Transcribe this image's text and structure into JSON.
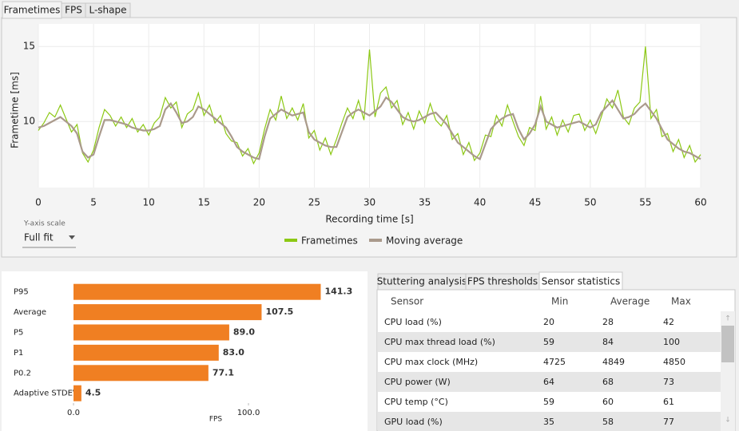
{
  "tabs": [
    "Frametimes",
    "FPS",
    "L-shape"
  ],
  "y_scale": {
    "label": "Y-axis scale",
    "value": "Full fit"
  },
  "chart_data": [
    {
      "type": "line",
      "xlabel": "Recording time [s]",
      "ylabel": "Frametime [ms]",
      "x": [
        0,
        0.5,
        1,
        1.5,
        2,
        2.5,
        3,
        3.5,
        4,
        4.5,
        5,
        5.5,
        6,
        6.5,
        7,
        7.5,
        8,
        8.5,
        9,
        9.5,
        10,
        10.5,
        11,
        11.5,
        12,
        12.5,
        13,
        13.5,
        14,
        14.5,
        15,
        15.5,
        16,
        16.5,
        17,
        17.5,
        18,
        18.5,
        19,
        19.5,
        20,
        20.5,
        21,
        21.5,
        22,
        22.5,
        23,
        23.5,
        24,
        24.5,
        25,
        25.5,
        26,
        26.5,
        27,
        27.5,
        28,
        28.5,
        29,
        29.5,
        30,
        30.5,
        31,
        31.5,
        32,
        32.5,
        33,
        33.5,
        34,
        34.5,
        35,
        35.5,
        36,
        36.5,
        37,
        37.5,
        38,
        38.5,
        39,
        39.5,
        40,
        40.5,
        41,
        41.5,
        42,
        42.5,
        43,
        43.5,
        44,
        44.5,
        45,
        45.5,
        46,
        46.5,
        47,
        47.5,
        48,
        48.5,
        49,
        49.5,
        50,
        50.5,
        51,
        51.5,
        52,
        52.5,
        53,
        53.5,
        54,
        54.5,
        55,
        55.5,
        56,
        56.5,
        57,
        57.5,
        58,
        58.5,
        59,
        59.5,
        60
      ],
      "series": [
        {
          "name": "Frametimes",
          "color": "#8cc814",
          "values": [
            9.4,
            9.9,
            10.6,
            10.3,
            11.1,
            10.2,
            9.3,
            9.8,
            7.9,
            7.3,
            8.1,
            9.6,
            10.8,
            10.4,
            9.7,
            10.3,
            9.6,
            10.2,
            9.3,
            9.8,
            9.1,
            9.9,
            10.3,
            11.6,
            10.9,
            11.3,
            9.6,
            10.5,
            10.8,
            11.9,
            10.4,
            11.1,
            9.9,
            10.4,
            9.2,
            8.7,
            8.6,
            7.7,
            8.2,
            7.2,
            7.9,
            9.5,
            10.8,
            10.1,
            11.7,
            10.2,
            10.9,
            10.1,
            11.2,
            8.9,
            9.4,
            8.1,
            8.9,
            7.8,
            8.8,
            9.9,
            10.9,
            10.2,
            11.4,
            10.1,
            14.8,
            10.3,
            11.9,
            12.3,
            10.9,
            11.4,
            9.8,
            10.6,
            9.5,
            10.7,
            9.9,
            11.2,
            10.1,
            9.7,
            10.4,
            8.8,
            9.2,
            7.8,
            8.6,
            7.4,
            7.9,
            9.1,
            9.0,
            10.4,
            9.7,
            11.1,
            10.0,
            9.0,
            8.4,
            9.6,
            9.4,
            11.7,
            9.5,
            10.3,
            9.1,
            10.1,
            9.3,
            10.4,
            10.5,
            9.4,
            10.1,
            9.2,
            10.3,
            11.5,
            10.9,
            12.1,
            10.3,
            9.8,
            10.9,
            11.3,
            15.0,
            10.2,
            10.8,
            9.0,
            9.2,
            8.0,
            8.8,
            7.6,
            8.4,
            7.3,
            7.8
          ]
        },
        {
          "name": "Moving average",
          "color": "#aa9a8c",
          "values": [
            9.6,
            9.7,
            9.9,
            10.1,
            10.3,
            10.0,
            9.7,
            9.2,
            8.0,
            7.6,
            7.8,
            9.0,
            10.1,
            10.1,
            10.0,
            9.9,
            9.8,
            9.6,
            9.5,
            9.4,
            9.4,
            9.5,
            9.7,
            10.8,
            11.2,
            10.6,
            9.9,
            10.0,
            10.3,
            11.0,
            10.8,
            10.5,
            10.2,
            9.9,
            9.6,
            9.0,
            8.3,
            8.0,
            7.8,
            7.6,
            7.5,
            9.0,
            10.2,
            10.5,
            10.8,
            10.6,
            10.4,
            10.5,
            10.6,
            9.3,
            8.8,
            8.6,
            8.4,
            8.3,
            8.3,
            9.3,
            10.3,
            10.6,
            10.8,
            10.6,
            10.4,
            10.7,
            11.0,
            11.6,
            11.3,
            10.8,
            10.3,
            10.1,
            10.0,
            10.1,
            10.3,
            10.5,
            10.6,
            10.2,
            9.8,
            9.2,
            8.6,
            8.3,
            8.0,
            7.7,
            7.5,
            8.5,
            9.5,
            9.9,
            10.2,
            10.4,
            10.5,
            9.5,
            8.8,
            9.2,
            9.8,
            11.0,
            10.0,
            9.8,
            9.6,
            9.7,
            9.8,
            9.9,
            10.0,
            9.8,
            9.6,
            9.8,
            10.6,
            11.0,
            11.4,
            10.8,
            10.2,
            10.3,
            10.5,
            10.9,
            11.2,
            10.7,
            10.2,
            9.5,
            8.8,
            8.5,
            8.2,
            8.0,
            7.9,
            7.7,
            7.5
          ]
        }
      ],
      "xlim": [
        0,
        60
      ],
      "xticks": [
        0,
        5,
        10,
        15,
        20,
        25,
        30,
        35,
        40,
        45,
        50,
        55,
        60
      ],
      "ylim": [
        5.6,
        16.5
      ],
      "yticks": [
        10,
        15
      ],
      "grid": true
    },
    {
      "type": "bar",
      "orientation": "horizontal",
      "xlabel": "FPS",
      "categories": [
        "P95",
        "Average",
        "P5",
        "P1",
        "P0.2",
        "Adaptive STDEV"
      ],
      "values": [
        141.3,
        107.5,
        89.0,
        83.0,
        77.1,
        4.5
      ],
      "value_labels": [
        "141.3",
        "107.5",
        "89.0",
        "83.0",
        "77.1",
        "4.5"
      ],
      "color": "#f07f22",
      "xlim": [
        0,
        163
      ],
      "xticks": [
        {
          "value": 0,
          "label": "0.0"
        },
        {
          "value": 100,
          "label": "100.0"
        }
      ]
    }
  ],
  "sensor_tabs": [
    "Stuttering analysis",
    "FPS thresholds",
    "Sensor statistics"
  ],
  "table": {
    "header": [
      "Sensor",
      "Min",
      "Average",
      "Max"
    ],
    "rows": [
      [
        "CPU load (%)",
        20,
        28,
        42
      ],
      [
        "CPU max thread load (%)",
        59,
        84,
        100
      ],
      [
        "CPU max clock (MHz)",
        4725,
        4849,
        4850
      ],
      [
        "CPU power (W)",
        64,
        68,
        73
      ],
      [
        "CPU temp (°C)",
        59,
        60,
        61
      ],
      [
        "GPU load (%)",
        35,
        58,
        77
      ]
    ]
  }
}
